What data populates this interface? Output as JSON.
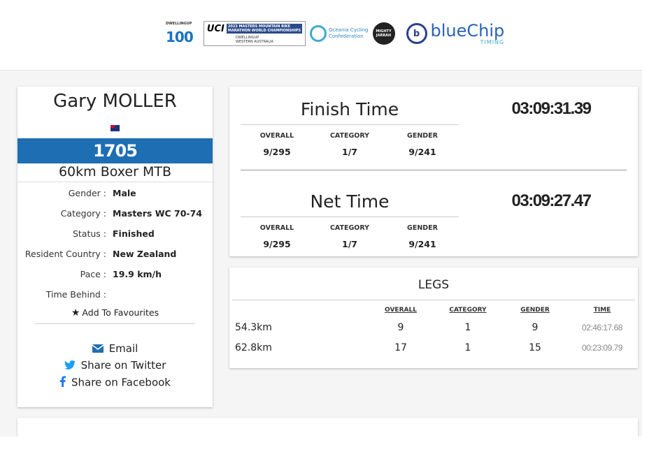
{
  "header": {
    "sponsors": {
      "dwellingup": {
        "small": "DWELLINGUP",
        "num": "100"
      },
      "uci": {
        "word": "UCI",
        "title_line1": "2023 MASTERS MOUNTAIN BIKE",
        "title_line2": "MARATHON WORLD CHAMPIONSHIPS",
        "sub_line1": "DWELLINGUP",
        "sub_line2": "WESTERN AUSTRALIA"
      },
      "oceania": {
        "line1": "Oceania Cycling",
        "line2": "Confederation"
      },
      "mighty": {
        "line1": "MIGHTY",
        "line2": "JARRAH"
      },
      "bluechip": {
        "mark": "b",
        "word": "blueChip",
        "sub": "TIMING"
      }
    }
  },
  "athlete": {
    "name": "Gary MOLLER",
    "flag_icon": "new-zealand-flag-icon",
    "bib": "1705",
    "event": "60km Boxer MTB",
    "fields": [
      {
        "label": "Gender :",
        "value": "Male"
      },
      {
        "label": "Category :",
        "value": "Masters WC 70-74"
      },
      {
        "label": "Status :",
        "value": "Finished"
      },
      {
        "label": "Resident Country :",
        "value": "New Zealand"
      },
      {
        "label": "Pace :",
        "value": "19.9 km/h"
      },
      {
        "label": "Time Behind :",
        "value": ""
      }
    ],
    "favourite_label": "Add To Favourites",
    "share": {
      "email": "Email",
      "twitter": "Share on Twitter",
      "facebook": "Share on Facebook"
    }
  },
  "results": {
    "headers": {
      "overall": "OVERALL",
      "category": "CATEGORY",
      "gender": "GENDER"
    },
    "finish": {
      "title": "Finish Time",
      "time": "03:09:31.39",
      "overall": "9/295",
      "category": "1/7",
      "gender": "9/241"
    },
    "net": {
      "title": "Net Time",
      "time": "03:09:27.47",
      "overall": "9/295",
      "category": "1/7",
      "gender": "9/241"
    }
  },
  "legs": {
    "title": "LEGS",
    "headers": {
      "overall": "OVERALL",
      "category": "CATEGORY",
      "gender": "GENDER",
      "time": "TIME"
    },
    "rows": [
      {
        "name": "54.3km",
        "overall": "9",
        "category": "1",
        "gender": "9",
        "time": "02:46:17.68"
      },
      {
        "name": "62.8km",
        "overall": "17",
        "category": "1",
        "gender": "15",
        "time": "00:23:09.79"
      }
    ]
  },
  "colors": {
    "bib_bar": "#1e6eb3",
    "twitter": "#1da1f2",
    "facebook": "#1877f2",
    "email": "#1e6eb3"
  }
}
